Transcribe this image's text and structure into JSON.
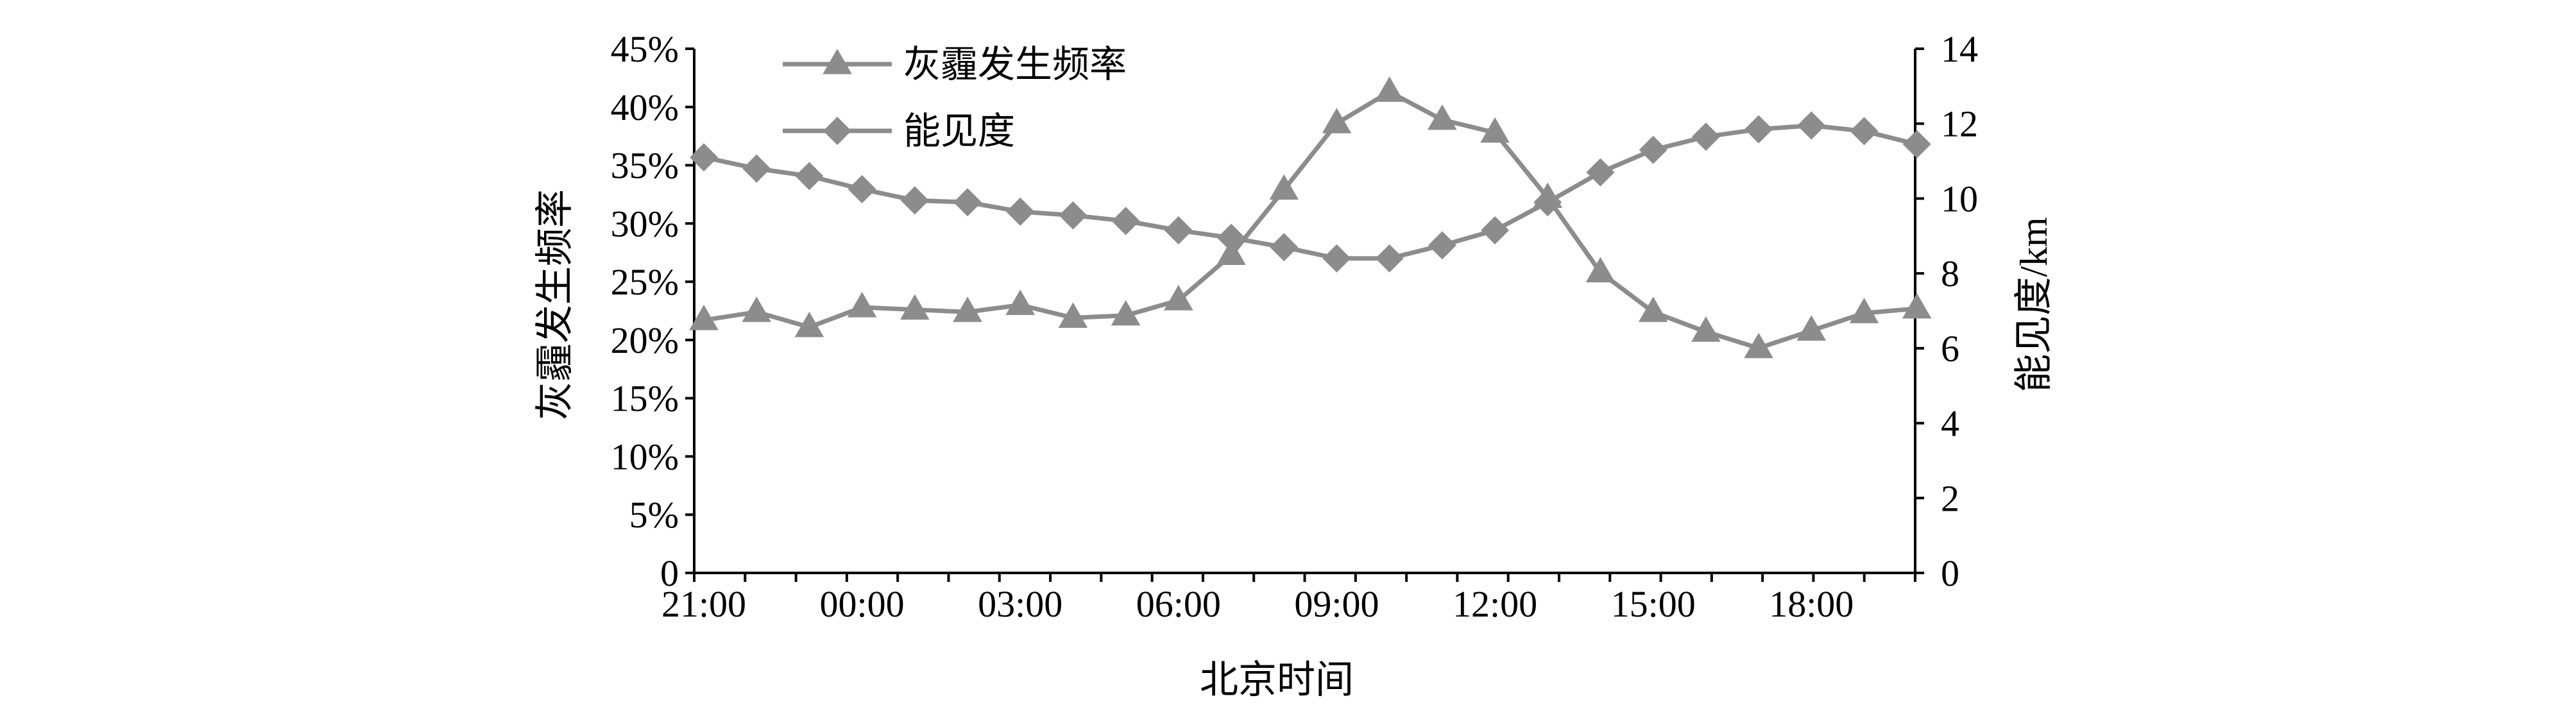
{
  "chart_data": {
    "type": "line",
    "x": [
      "21:00",
      "22:00",
      "23:00",
      "00:00",
      "01:00",
      "02:00",
      "03:00",
      "04:00",
      "05:00",
      "06:00",
      "07:00",
      "08:00",
      "09:00",
      "10:00",
      "11:00",
      "12:00",
      "13:00",
      "14:00",
      "15:00",
      "16:00",
      "17:00",
      "18:00",
      "19:00",
      "20:00"
    ],
    "x_tick_labels": [
      "21:00",
      "00:00",
      "03:00",
      "06:00",
      "09:00",
      "12:00",
      "15:00",
      "18:00"
    ],
    "xlabel": "北京时间",
    "ylabel_left": "灰霾发生频率",
    "ylabel_right": "能见度/km",
    "ylim_left": [
      0,
      45
    ],
    "ylim_right": [
      0,
      14
    ],
    "y_left_ticks": [
      "0",
      "5%",
      "10%",
      "15%",
      "20%",
      "25%",
      "30%",
      "35%",
      "40%",
      "45%"
    ],
    "y_right_ticks": [
      "0",
      "2",
      "4",
      "6",
      "8",
      "10",
      "12",
      "14"
    ],
    "grid": false,
    "legend_position": "top-left",
    "series": [
      {
        "name": "灰霾发生频率",
        "axis": "left",
        "marker": "triangle",
        "color": "#8c8c8c",
        "values": [
          21.7,
          22.4,
          21.1,
          22.8,
          22.6,
          22.4,
          23.0,
          21.9,
          22.1,
          23.4,
          27.3,
          32.9,
          38.6,
          41.3,
          38.9,
          37.8,
          32.2,
          25.8,
          22.4,
          20.7,
          19.3,
          20.8,
          22.3,
          22.7
        ]
      },
      {
        "name": "能见度",
        "axis": "right",
        "marker": "diamond",
        "color": "#8c8c8c",
        "values": [
          11.1,
          10.8,
          10.6,
          10.25,
          9.95,
          9.9,
          9.65,
          9.55,
          9.4,
          9.15,
          8.95,
          8.7,
          8.4,
          8.4,
          8.75,
          9.15,
          9.9,
          10.7,
          11.3,
          11.65,
          11.85,
          11.95,
          11.8,
          11.45
        ]
      }
    ]
  }
}
